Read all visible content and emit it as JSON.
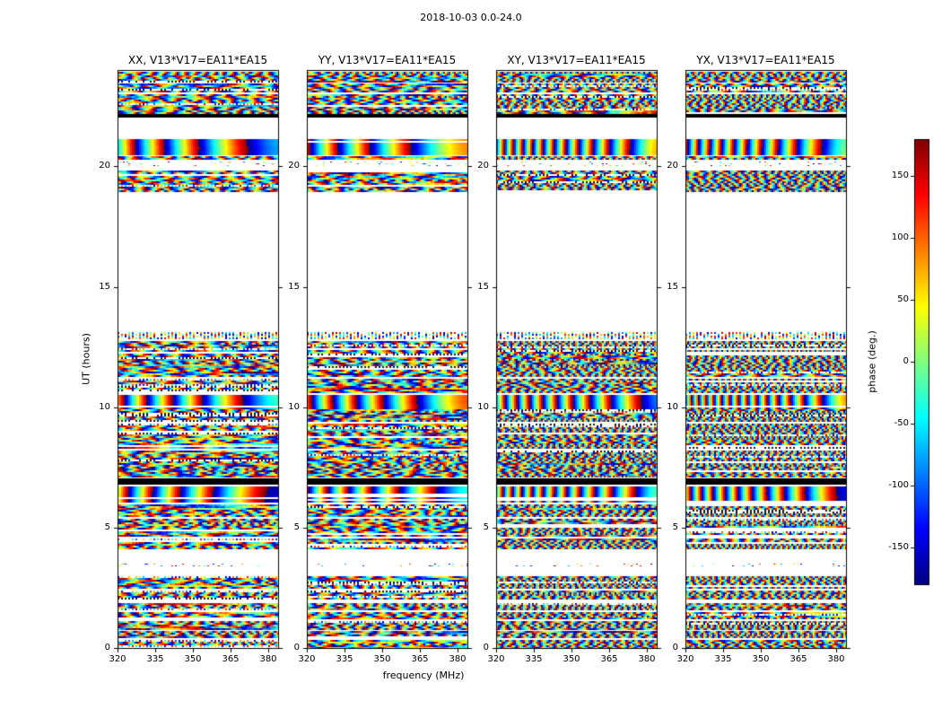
{
  "chart_data": {
    "type": "heatmap",
    "title": "2018-10-03 0.0-24.0",
    "xlabel": "frequency (MHz)",
    "ylabel": "UT (hours)",
    "xlim": [
      320,
      384
    ],
    "ylim": [
      0.0,
      24.0
    ],
    "xticks": [
      320,
      335,
      350,
      365,
      380
    ],
    "yticks": [
      0,
      5,
      10,
      15,
      20
    ],
    "panels": [
      {
        "id": "XX",
        "title": "XX, V13*V17=EA11*EA15"
      },
      {
        "id": "YY",
        "title": "YY, V13*V17=EA11*EA15"
      },
      {
        "id": "XY",
        "title": "XY, V13*V17=EA11*EA15"
      },
      {
        "id": "YX",
        "title": "YX, V13*V17=EA11*EA15"
      }
    ],
    "colorbar": {
      "label": "phase (deg.)",
      "ticks": [
        150,
        100,
        50,
        0,
        -50,
        -100,
        -150
      ],
      "vmin": -180,
      "vmax": 180,
      "colormap": "jet"
    },
    "no_data_color": "#ffffff",
    "frame_color": "#000000",
    "bands": [
      {
        "ut": [
          0.0,
          0.34
        ],
        "kind": "noise"
      },
      {
        "ut": [
          0.42,
          0.72
        ],
        "kind": "noise"
      },
      {
        "ut": [
          0.79,
          1.12
        ],
        "kind": "noise"
      },
      {
        "ut": [
          1.19,
          1.5
        ],
        "kind": "noise"
      },
      {
        "ut": [
          1.57,
          1.87
        ],
        "kind": "noise"
      },
      {
        "ut": [
          2.01,
          2.39
        ],
        "kind": "noise"
      },
      {
        "ut": [
          2.5,
          2.98
        ],
        "kind": "noise"
      },
      {
        "ut": [
          3.35,
          3.52
        ],
        "kind": "sparse"
      },
      {
        "ut": [
          4.1,
          4.55
        ],
        "kind": "noise"
      },
      {
        "ut": [
          4.63,
          5.37
        ],
        "kind": "noise"
      },
      {
        "ut": [
          5.44,
          5.96
        ],
        "kind": "noise"
      },
      {
        "ut": [
          6.04,
          6.71
        ],
        "kind": "smooth"
      },
      {
        "ut": [
          6.79,
          7.04
        ],
        "kind": "black"
      },
      {
        "ut": [
          7.12,
          8.21
        ],
        "kind": "noise"
      },
      {
        "ut": [
          8.28,
          9.31
        ],
        "kind": "noise"
      },
      {
        "ut": [
          9.39,
          9.91
        ],
        "kind": "noise"
      },
      {
        "ut": [
          9.96,
          10.51
        ],
        "kind": "smooth"
      },
      {
        "ut": [
          10.57,
          11.18
        ],
        "kind": "noise"
      },
      {
        "ut": [
          11.25,
          12.76
        ],
        "kind": "noise"
      },
      {
        "ut": [
          12.82,
          13.12
        ],
        "kind": "dotted"
      },
      {
        "ut": [
          18.97,
          19.84
        ],
        "kind": "noise"
      },
      {
        "ut": [
          20.01,
          20.2
        ],
        "kind": "sparse"
      },
      {
        "ut": [
          20.27,
          20.43
        ],
        "kind": "noise"
      },
      {
        "ut": [
          20.51,
          21.14
        ],
        "kind": "smooth"
      },
      {
        "ut": [
          22.02,
          22.17
        ],
        "kind": "black"
      },
      {
        "ut": [
          22.22,
          23.01
        ],
        "kind": "noise"
      },
      {
        "ut": [
          23.06,
          23.43
        ],
        "kind": "noise"
      },
      {
        "ut": [
          23.48,
          23.92
        ],
        "kind": "noise"
      }
    ]
  }
}
